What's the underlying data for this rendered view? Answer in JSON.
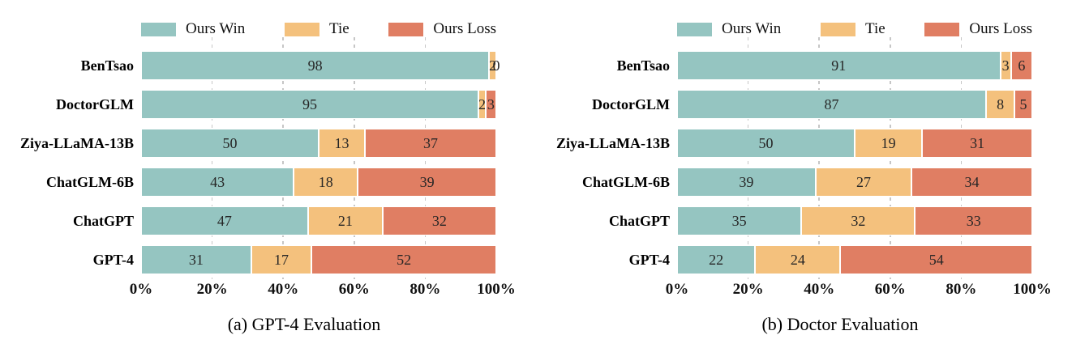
{
  "figure": {
    "background": "#ffffff"
  },
  "legend": {
    "items": [
      {
        "label": "Ours Win",
        "color": "#95C5C1"
      },
      {
        "label": "Tie",
        "color": "#F4C17D"
      },
      {
        "label": "Ours Loss",
        "color": "#E07E63"
      }
    ]
  },
  "styles": {
    "grid_color": "#c6c6c6",
    "value_text_color": "#262626",
    "label_text_color": "#000000"
  },
  "chart_data": [
    {
      "type": "bar",
      "orientation": "horizontal",
      "stacked": true,
      "title": "(a) GPT-4 Evaluation",
      "categories": [
        "BenTsao",
        "DoctorGLM",
        "Ziya-LLaMA-13B",
        "ChatGLM-6B",
        "ChatGPT",
        "GPT-4"
      ],
      "series": [
        {
          "name": "Ours Win",
          "values": [
            98,
            95,
            50,
            43,
            47,
            31
          ]
        },
        {
          "name": "Tie",
          "values": [
            2,
            2,
            13,
            18,
            21,
            17
          ]
        },
        {
          "name": "Ours Loss",
          "values": [
            0,
            3,
            37,
            39,
            32,
            52
          ]
        }
      ],
      "x_ticks": [
        "0%",
        "20%",
        "40%",
        "60%",
        "80%",
        "100%"
      ],
      "xlim": [
        0,
        100
      ],
      "grid": true,
      "legend_position": "top"
    },
    {
      "type": "bar",
      "orientation": "horizontal",
      "stacked": true,
      "title": "(b) Doctor Evaluation",
      "categories": [
        "BenTsao",
        "DoctorGLM",
        "Ziya-LLaMA-13B",
        "ChatGLM-6B",
        "ChatGPT",
        "GPT-4"
      ],
      "series": [
        {
          "name": "Ours Win",
          "values": [
            91,
            87,
            50,
            39,
            35,
            22
          ]
        },
        {
          "name": "Tie",
          "values": [
            3,
            8,
            19,
            27,
            32,
            24
          ]
        },
        {
          "name": "Ours Loss",
          "values": [
            6,
            5,
            31,
            34,
            33,
            54
          ]
        }
      ],
      "x_ticks": [
        "0%",
        "20%",
        "40%",
        "60%",
        "80%",
        "100%"
      ],
      "xlim": [
        0,
        100
      ],
      "grid": true,
      "legend_position": "top"
    }
  ]
}
